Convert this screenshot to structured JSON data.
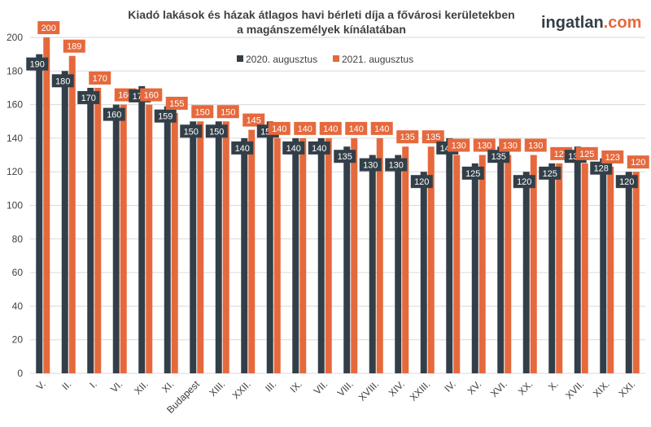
{
  "brand": {
    "name": "ingatlan",
    "suffix": ".com"
  },
  "chart_data": {
    "type": "bar",
    "title": [
      "Kiadó lakások és házak átlagos havi bérleti díja a fővárosi kerületekben",
      "a magánszemélyek kínálatában"
    ],
    "xlabel": "",
    "ylabel": "",
    "ylim": [
      0,
      200
    ],
    "yticks": [
      0,
      20,
      40,
      60,
      80,
      100,
      120,
      140,
      160,
      180,
      200
    ],
    "grid": true,
    "legend_position": "top-center",
    "categories": [
      "V.",
      "II.",
      "I.",
      "VI.",
      "XII.",
      "XI.",
      "Budapest",
      "XIII.",
      "XXII.",
      "III.",
      "IX.",
      "VII.",
      "VIII.",
      "XVIII.",
      "XIV.",
      "XXIII.",
      "IV.",
      "XV.",
      "XVI.",
      "XX.",
      "X.",
      "XVII.",
      "XIX.",
      "XXI."
    ],
    "series": [
      {
        "name": "2020. augusztus",
        "color": "#333f48",
        "values": [
          190,
          180,
          170,
          160,
          171,
          159,
          150,
          150,
          140,
          150,
          140,
          140,
          135,
          130,
          130,
          120,
          140,
          125,
          135,
          120,
          125,
          135,
          128,
          120
        ]
      },
      {
        "name": "2021. augusztus",
        "color": "#e5693d",
        "values": [
          200,
          189,
          170,
          160,
          160,
          155,
          150,
          150,
          145,
          140,
          140,
          140,
          140,
          140,
          135,
          135,
          130,
          130,
          130,
          130,
          125,
          125,
          123,
          120
        ]
      }
    ]
  }
}
